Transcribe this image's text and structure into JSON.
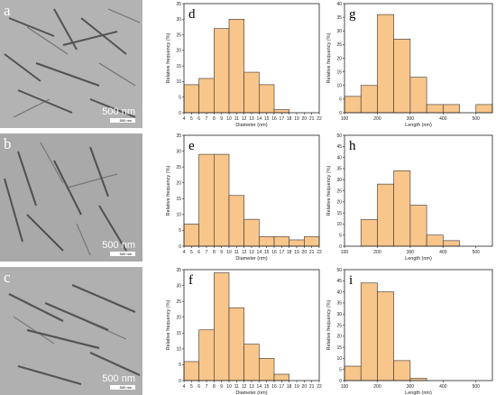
{
  "tem_images": [
    {
      "letter": "a",
      "scale_label": "500 nm",
      "scale_small": "500 nm"
    },
    {
      "letter": "b",
      "scale_label": "500 nm",
      "scale_small": "500 nm"
    },
    {
      "letter": "c",
      "scale_label": "500 nm",
      "scale_small": "500 nm"
    }
  ],
  "colors": {
    "bar_fill": "#f8c58a",
    "bar_stroke": "#333333"
  },
  "chart_data": [
    {
      "type": "bar",
      "letter": "d",
      "xlabel": "Diameter (nm)",
      "ylabel": "Relative frequency (%)",
      "xlim": [
        4,
        22
      ],
      "ylim": [
        0,
        35
      ],
      "xticks": [
        4,
        5,
        6,
        7,
        8,
        9,
        10,
        11,
        12,
        13,
        14,
        15,
        16,
        17,
        18,
        19,
        20,
        21,
        22
      ],
      "yticks": [
        0,
        5,
        10,
        15,
        20,
        25,
        30,
        35
      ],
      "bin_width": 2,
      "bins": [
        {
          "x": 5,
          "v": 9
        },
        {
          "x": 7,
          "v": 11
        },
        {
          "x": 9,
          "v": 27
        },
        {
          "x": 11,
          "v": 30
        },
        {
          "x": 13,
          "v": 13
        },
        {
          "x": 15,
          "v": 9
        },
        {
          "x": 17,
          "v": 1
        }
      ]
    },
    {
      "type": "bar",
      "letter": "g",
      "xlabel": "Length (nm)",
      "ylabel": "Relative frequency (%)",
      "xlim": [
        100,
        550
      ],
      "ylim": [
        0,
        40
      ],
      "xticks": [
        100,
        200,
        300,
        400,
        500
      ],
      "yticks": [
        0,
        5,
        10,
        15,
        20,
        25,
        30,
        35,
        40
      ],
      "bin_width": 50,
      "bins": [
        {
          "x": 125,
          "v": 6
        },
        {
          "x": 175,
          "v": 10
        },
        {
          "x": 225,
          "v": 36
        },
        {
          "x": 275,
          "v": 27
        },
        {
          "x": 325,
          "v": 13
        },
        {
          "x": 375,
          "v": 3
        },
        {
          "x": 425,
          "v": 3
        },
        {
          "x": 525,
          "v": 3
        }
      ]
    },
    {
      "type": "bar",
      "letter": "e",
      "xlabel": "Diameter (nm)",
      "ylabel": "Relative frequency (%)",
      "xlim": [
        4,
        22
      ],
      "ylim": [
        0,
        35
      ],
      "xticks": [
        4,
        5,
        6,
        7,
        8,
        9,
        10,
        11,
        12,
        13,
        14,
        15,
        16,
        17,
        18,
        19,
        20,
        21,
        22
      ],
      "yticks": [
        0,
        5,
        10,
        15,
        20,
        25,
        30,
        35
      ],
      "bin_width": 2,
      "bins": [
        {
          "x": 5,
          "v": 7
        },
        {
          "x": 7,
          "v": 29
        },
        {
          "x": 9,
          "v": 29
        },
        {
          "x": 11,
          "v": 16
        },
        {
          "x": 13,
          "v": 8.5
        },
        {
          "x": 15,
          "v": 3
        },
        {
          "x": 17,
          "v": 3
        },
        {
          "x": 19,
          "v": 2
        },
        {
          "x": 21,
          "v": 3
        }
      ]
    },
    {
      "type": "bar",
      "letter": "h",
      "xlabel": "Length (nm)",
      "ylabel": "Relative frequency (%)",
      "xlim": [
        100,
        550
      ],
      "ylim": [
        0,
        50
      ],
      "xticks": [
        100,
        200,
        300,
        400,
        500
      ],
      "yticks": [
        0,
        5,
        10,
        15,
        20,
        25,
        30,
        35,
        40,
        45,
        50
      ],
      "bin_width": 50,
      "bins": [
        {
          "x": 175,
          "v": 12
        },
        {
          "x": 225,
          "v": 28
        },
        {
          "x": 275,
          "v": 34
        },
        {
          "x": 325,
          "v": 18.5
        },
        {
          "x": 375,
          "v": 5
        },
        {
          "x": 425,
          "v": 2.5
        }
      ]
    },
    {
      "type": "bar",
      "letter": "f",
      "xlabel": "Diameter (nm)",
      "ylabel": "Relative frequency (%)",
      "xlim": [
        4,
        22
      ],
      "ylim": [
        0,
        35
      ],
      "xticks": [
        4,
        5,
        6,
        7,
        8,
        9,
        10,
        11,
        12,
        13,
        14,
        15,
        16,
        17,
        18,
        19,
        20,
        21,
        22
      ],
      "yticks": [
        0,
        5,
        10,
        15,
        20,
        25,
        30,
        35
      ],
      "bin_width": 2,
      "bins": [
        {
          "x": 5,
          "v": 6
        },
        {
          "x": 7,
          "v": 16
        },
        {
          "x": 9,
          "v": 34
        },
        {
          "x": 11,
          "v": 23
        },
        {
          "x": 13,
          "v": 11.5
        },
        {
          "x": 15,
          "v": 7
        },
        {
          "x": 17,
          "v": 2
        }
      ]
    },
    {
      "type": "bar",
      "letter": "i",
      "xlabel": "Length (nm)",
      "ylabel": "Relative frequency (%)",
      "xlim": [
        100,
        550
      ],
      "ylim": [
        0,
        50
      ],
      "xticks": [
        100,
        200,
        300,
        400,
        500
      ],
      "yticks": [
        0,
        5,
        10,
        15,
        20,
        25,
        30,
        35,
        40,
        45,
        50
      ],
      "bin_width": 50,
      "bins": [
        {
          "x": 125,
          "v": 6.5
        },
        {
          "x": 175,
          "v": 44
        },
        {
          "x": 225,
          "v": 40
        },
        {
          "x": 275,
          "v": 9
        },
        {
          "x": 325,
          "v": 1
        }
      ]
    }
  ]
}
